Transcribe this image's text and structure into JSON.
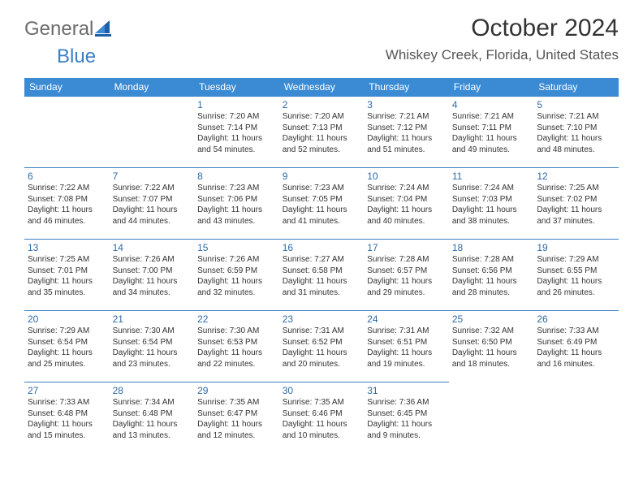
{
  "brand": {
    "part1": "General",
    "part2": "Blue"
  },
  "title": "October 2024",
  "location": "Whiskey Creek, Florida, United States",
  "colors": {
    "header_bg": "#3b8bd4",
    "header_text": "#ffffff",
    "rule": "#3b7fc4",
    "daynum": "#2e6aa8",
    "body_text": "#333333",
    "brand_gray": "#6b6b6b",
    "brand_blue": "#3b7fc4",
    "page_bg": "#ffffff"
  },
  "weekdays": [
    "Sunday",
    "Monday",
    "Tuesday",
    "Wednesday",
    "Thursday",
    "Friday",
    "Saturday"
  ],
  "weeks": [
    [
      null,
      null,
      {
        "n": "1",
        "sr": "7:20 AM",
        "ss": "7:14 PM",
        "dl": "11 hours and 54 minutes."
      },
      {
        "n": "2",
        "sr": "7:20 AM",
        "ss": "7:13 PM",
        "dl": "11 hours and 52 minutes."
      },
      {
        "n": "3",
        "sr": "7:21 AM",
        "ss": "7:12 PM",
        "dl": "11 hours and 51 minutes."
      },
      {
        "n": "4",
        "sr": "7:21 AM",
        "ss": "7:11 PM",
        "dl": "11 hours and 49 minutes."
      },
      {
        "n": "5",
        "sr": "7:21 AM",
        "ss": "7:10 PM",
        "dl": "11 hours and 48 minutes."
      }
    ],
    [
      {
        "n": "6",
        "sr": "7:22 AM",
        "ss": "7:08 PM",
        "dl": "11 hours and 46 minutes."
      },
      {
        "n": "7",
        "sr": "7:22 AM",
        "ss": "7:07 PM",
        "dl": "11 hours and 44 minutes."
      },
      {
        "n": "8",
        "sr": "7:23 AM",
        "ss": "7:06 PM",
        "dl": "11 hours and 43 minutes."
      },
      {
        "n": "9",
        "sr": "7:23 AM",
        "ss": "7:05 PM",
        "dl": "11 hours and 41 minutes."
      },
      {
        "n": "10",
        "sr": "7:24 AM",
        "ss": "7:04 PM",
        "dl": "11 hours and 40 minutes."
      },
      {
        "n": "11",
        "sr": "7:24 AM",
        "ss": "7:03 PM",
        "dl": "11 hours and 38 minutes."
      },
      {
        "n": "12",
        "sr": "7:25 AM",
        "ss": "7:02 PM",
        "dl": "11 hours and 37 minutes."
      }
    ],
    [
      {
        "n": "13",
        "sr": "7:25 AM",
        "ss": "7:01 PM",
        "dl": "11 hours and 35 minutes."
      },
      {
        "n": "14",
        "sr": "7:26 AM",
        "ss": "7:00 PM",
        "dl": "11 hours and 34 minutes."
      },
      {
        "n": "15",
        "sr": "7:26 AM",
        "ss": "6:59 PM",
        "dl": "11 hours and 32 minutes."
      },
      {
        "n": "16",
        "sr": "7:27 AM",
        "ss": "6:58 PM",
        "dl": "11 hours and 31 minutes."
      },
      {
        "n": "17",
        "sr": "7:28 AM",
        "ss": "6:57 PM",
        "dl": "11 hours and 29 minutes."
      },
      {
        "n": "18",
        "sr": "7:28 AM",
        "ss": "6:56 PM",
        "dl": "11 hours and 28 minutes."
      },
      {
        "n": "19",
        "sr": "7:29 AM",
        "ss": "6:55 PM",
        "dl": "11 hours and 26 minutes."
      }
    ],
    [
      {
        "n": "20",
        "sr": "7:29 AM",
        "ss": "6:54 PM",
        "dl": "11 hours and 25 minutes."
      },
      {
        "n": "21",
        "sr": "7:30 AM",
        "ss": "6:54 PM",
        "dl": "11 hours and 23 minutes."
      },
      {
        "n": "22",
        "sr": "7:30 AM",
        "ss": "6:53 PM",
        "dl": "11 hours and 22 minutes."
      },
      {
        "n": "23",
        "sr": "7:31 AM",
        "ss": "6:52 PM",
        "dl": "11 hours and 20 minutes."
      },
      {
        "n": "24",
        "sr": "7:31 AM",
        "ss": "6:51 PM",
        "dl": "11 hours and 19 minutes."
      },
      {
        "n": "25",
        "sr": "7:32 AM",
        "ss": "6:50 PM",
        "dl": "11 hours and 18 minutes."
      },
      {
        "n": "26",
        "sr": "7:33 AM",
        "ss": "6:49 PM",
        "dl": "11 hours and 16 minutes."
      }
    ],
    [
      {
        "n": "27",
        "sr": "7:33 AM",
        "ss": "6:48 PM",
        "dl": "11 hours and 15 minutes."
      },
      {
        "n": "28",
        "sr": "7:34 AM",
        "ss": "6:48 PM",
        "dl": "11 hours and 13 minutes."
      },
      {
        "n": "29",
        "sr": "7:35 AM",
        "ss": "6:47 PM",
        "dl": "11 hours and 12 minutes."
      },
      {
        "n": "30",
        "sr": "7:35 AM",
        "ss": "6:46 PM",
        "dl": "11 hours and 10 minutes."
      },
      {
        "n": "31",
        "sr": "7:36 AM",
        "ss": "6:45 PM",
        "dl": "11 hours and 9 minutes."
      },
      null,
      null
    ]
  ],
  "labels": {
    "sunrise": "Sunrise:",
    "sunset": "Sunset:",
    "daylight": "Daylight:"
  }
}
